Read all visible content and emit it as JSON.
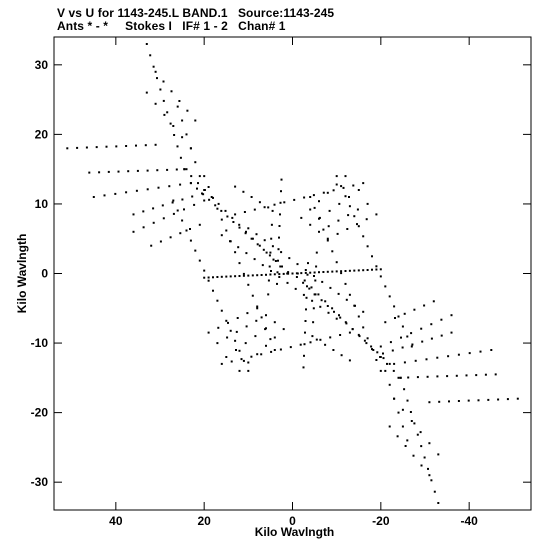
{
  "header": {
    "line1": "V vs U for 1143-245.L BAND.1   Source:1143-245",
    "line2": "Ants * - *     Stokes I   IF# 1 - 2   Chan# 1"
  },
  "chart_data": {
    "type": "scatter",
    "xlabel": "Kilo Wavlngth",
    "ylabel": "Kilo Wavlngth",
    "xlim": [
      54,
      -54
    ],
    "ylim": [
      -34,
      34
    ],
    "xticks": [
      40,
      20,
      0,
      -20,
      -40
    ],
    "yticks": [
      30,
      20,
      10,
      0,
      -10,
      -20,
      -30
    ],
    "grid": false,
    "marker_color": "#000000",
    "tracks": [
      {
        "u0": 1.0,
        "v0": 0.2,
        "u1": 23.0,
        "v1": 13.0,
        "step": 1.6
      },
      {
        "u0": 1.2,
        "v0": 0.0,
        "u1": 24.5,
        "v1": 15.0,
        "step": 1.8
      },
      {
        "u0": 24.5,
        "v0": 15.0,
        "u1": 33.0,
        "v1": 33.0,
        "step": 1.8
      },
      {
        "u0": 31.0,
        "v0": 18.5,
        "u1": 51.0,
        "v1": 18.0,
        "step": 2.3
      },
      {
        "u0": 24.0,
        "v0": 15.0,
        "u1": 46.0,
        "v1": 14.5,
        "step": 2.3
      },
      {
        "u0": 23.0,
        "v0": 13.0,
        "u1": 45.0,
        "v1": 11.0,
        "step": 2.4
      },
      {
        "u0": 20.5,
        "v0": 11.5,
        "u1": 36.0,
        "v1": 8.5,
        "step": 2.4
      },
      {
        "u0": 20.0,
        "v0": 10.5,
        "u1": 36.0,
        "v1": 6.0,
        "step": 2.4
      },
      {
        "u0": 21.0,
        "v0": 7.0,
        "u1": 32.0,
        "v1": 4.0,
        "step": 2.4
      },
      {
        "u0": 22.0,
        "v0": 22.0,
        "u1": 31.0,
        "v1": 29.0,
        "step": 2.4
      },
      {
        "u0": 23.0,
        "v0": 18.0,
        "u1": 33.0,
        "v1": 26.0,
        "step": 2.4
      },
      {
        "u0": 20.0,
        "v0": 12.0,
        "u1": 26.0,
        "v1": 24.0,
        "step": 2.4
      },
      {
        "u0": 3.5,
        "v0": -1.5,
        "u1": 2.5,
        "v1": 13.5,
        "step": 1.6
      },
      {
        "u0": 5.5,
        "v0": -3.0,
        "u1": 4.5,
        "v1": 9.0,
        "step": 2.0
      },
      {
        "u0": 5.5,
        "v0": 9.5,
        "u1": 13.0,
        "v1": 12.5,
        "step": 2.0
      },
      {
        "u0": 8.0,
        "v0": -5.0,
        "u1": 19.0,
        "v1": -8.5,
        "step": 2.2
      },
      {
        "u0": 6.0,
        "v0": -6.0,
        "u1": 17.0,
        "v1": -10.0,
        "step": 2.2
      },
      {
        "u0": 4.0,
        "v0": -7.0,
        "u1": 15.0,
        "v1": -12.0,
        "step": 2.2
      },
      {
        "u0": 2.0,
        "v0": -8.0,
        "u1": 12.0,
        "v1": -14.0,
        "step": 2.2
      },
      {
        "u0": -1.0,
        "v0": -0.5,
        "u1": -22.0,
        "v1": -13.0,
        "step": 1.6
      },
      {
        "u0": -1.2,
        "v0": 0.0,
        "u1": -24.5,
        "v1": -15.0,
        "step": 1.8
      },
      {
        "u0": -24.5,
        "v0": -15.0,
        "u1": -33.0,
        "v1": -33.0,
        "step": 1.8
      },
      {
        "u0": -31.0,
        "v0": -18.5,
        "u1": -51.0,
        "v1": -18.0,
        "step": 2.3
      },
      {
        "u0": -24.0,
        "v0": -15.0,
        "u1": -46.0,
        "v1": -14.5,
        "step": 2.3
      },
      {
        "u0": -23.0,
        "v0": -13.0,
        "u1": -45.0,
        "v1": -11.0,
        "step": 2.4
      },
      {
        "u0": -20.5,
        "v0": -11.5,
        "u1": -36.0,
        "v1": -8.5,
        "step": 2.4
      },
      {
        "u0": -20.0,
        "v0": -10.5,
        "u1": -36.0,
        "v1": -6.0,
        "step": 2.4
      },
      {
        "u0": -21.0,
        "v0": -7.0,
        "u1": -32.0,
        "v1": -4.0,
        "step": 2.4
      },
      {
        "u0": -22.0,
        "v0": -22.0,
        "u1": -31.0,
        "v1": -29.0,
        "step": 2.4
      },
      {
        "u0": -23.0,
        "v0": -18.0,
        "u1": -33.0,
        "v1": -26.0,
        "step": 2.4
      },
      {
        "u0": -20.0,
        "v0": -12.0,
        "u1": -26.0,
        "v1": -24.0,
        "step": 2.4
      },
      {
        "u0": -3.5,
        "v0": 1.5,
        "u1": -2.5,
        "v1": -13.5,
        "step": 1.6
      },
      {
        "u0": -5.5,
        "v0": 3.0,
        "u1": -4.5,
        "v1": -9.0,
        "step": 2.0
      },
      {
        "u0": -5.5,
        "v0": -9.5,
        "u1": -13.0,
        "v1": -12.5,
        "step": 2.0
      },
      {
        "u0": -8.0,
        "v0": 5.0,
        "u1": -19.0,
        "v1": 8.5,
        "step": 2.2
      },
      {
        "u0": -6.0,
        "v0": 6.0,
        "u1": -17.0,
        "v1": 10.0,
        "step": 2.2
      },
      {
        "u0": -4.0,
        "v0": 7.0,
        "u1": -15.0,
        "v1": 12.0,
        "step": 2.2
      },
      {
        "u0": -2.0,
        "v0": 8.0,
        "u1": -12.0,
        "v1": 14.0,
        "step": 2.2
      },
      {
        "u0": 20.0,
        "v0": -0.6,
        "u1": -20.0,
        "v1": 0.6,
        "step": 1.0
      },
      {
        "u0": 13.0,
        "v0": 8.5,
        "u1": -16.0,
        "v1": 13.0,
        "step": 2.2
      },
      {
        "u0": 16.0,
        "v0": -13.0,
        "u1": -13.0,
        "v1": -8.5,
        "step": 2.2
      },
      {
        "u0": 20.0,
        "v0": 14.0,
        "u1": 4.0,
        "v1": -11.0,
        "step": 1.8
      },
      {
        "u0": 27.0,
        "v0": 10.5,
        "u1": 10.0,
        "v1": -14.0,
        "step": 1.8
      },
      {
        "u0": -20.0,
        "v0": -14.0,
        "u1": -4.0,
        "v1": 11.0,
        "step": 1.8
      },
      {
        "u0": -27.0,
        "v0": -10.5,
        "u1": -10.0,
        "v1": 14.0,
        "step": 1.8
      },
      {
        "u0": 16.0,
        "v0": 5.5,
        "u1": -10.0,
        "v1": -6.5,
        "step": 2.0
      },
      {
        "u0": 10.0,
        "v0": 6.5,
        "u1": -16.0,
        "v1": -5.5,
        "step": 2.0
      }
    ]
  }
}
